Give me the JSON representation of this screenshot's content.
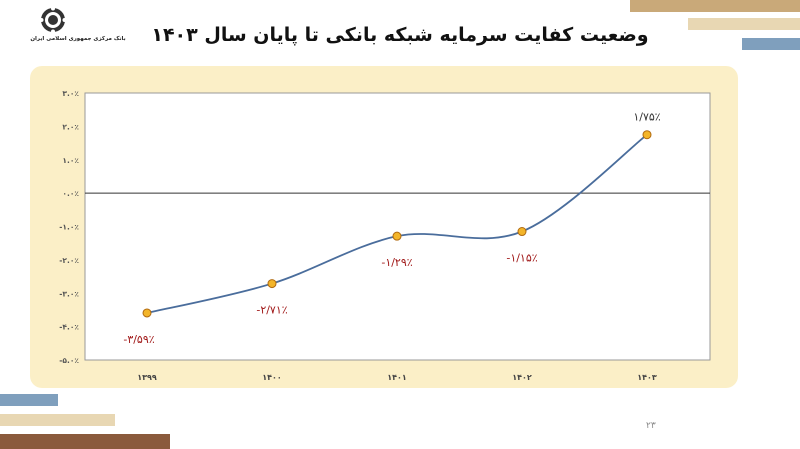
{
  "header": {
    "bank_name": "بانک مرکزی جمهوری اسلامی ایران",
    "title": "وضعیت کفایت سرمایه شبکه بانکی تا پایان سال ۱۴۰۳"
  },
  "footer": {
    "page_number": "۲۳"
  },
  "colors": {
    "panel": "#fbefc7",
    "line": "#4a6d9c",
    "marker_fill": "#f3b52a",
    "marker_stroke": "#b06a10",
    "label_text": "#a01818",
    "stripe_tan": "#c9a979",
    "stripe_blue": "#7f9fbd",
    "stripe_brown": "#8a5a3c"
  },
  "icons": {
    "logo": "bank-seal-icon"
  },
  "chart_data": {
    "type": "line",
    "categories": [
      "۱۳۹۹",
      "۱۴۰۰",
      "۱۴۰۱",
      "۱۴۰۲",
      "۱۴۰۳"
    ],
    "values": [
      -3.59,
      -2.71,
      -1.29,
      -1.15,
      1.75
    ],
    "data_labels": [
      "-۳/۵۹٪",
      "-۲/۷۱٪",
      "-۱/۲۹٪",
      "-۱/۱۵٪",
      "۱/۷۵٪"
    ],
    "y_ticks": [
      3,
      2,
      1,
      0,
      -1,
      -2,
      -3,
      -4,
      -5
    ],
    "y_tick_labels": [
      "۳.۰٪",
      "۲.۰٪",
      "۱.۰٪",
      "۰.۰٪",
      "-۱.۰٪",
      "-۲.۰٪",
      "-۳.۰٪",
      "-۴.۰٪",
      "-۵.۰٪"
    ],
    "ylim": [
      -5,
      3
    ],
    "smooth": true,
    "grid": false,
    "legend": "none"
  }
}
